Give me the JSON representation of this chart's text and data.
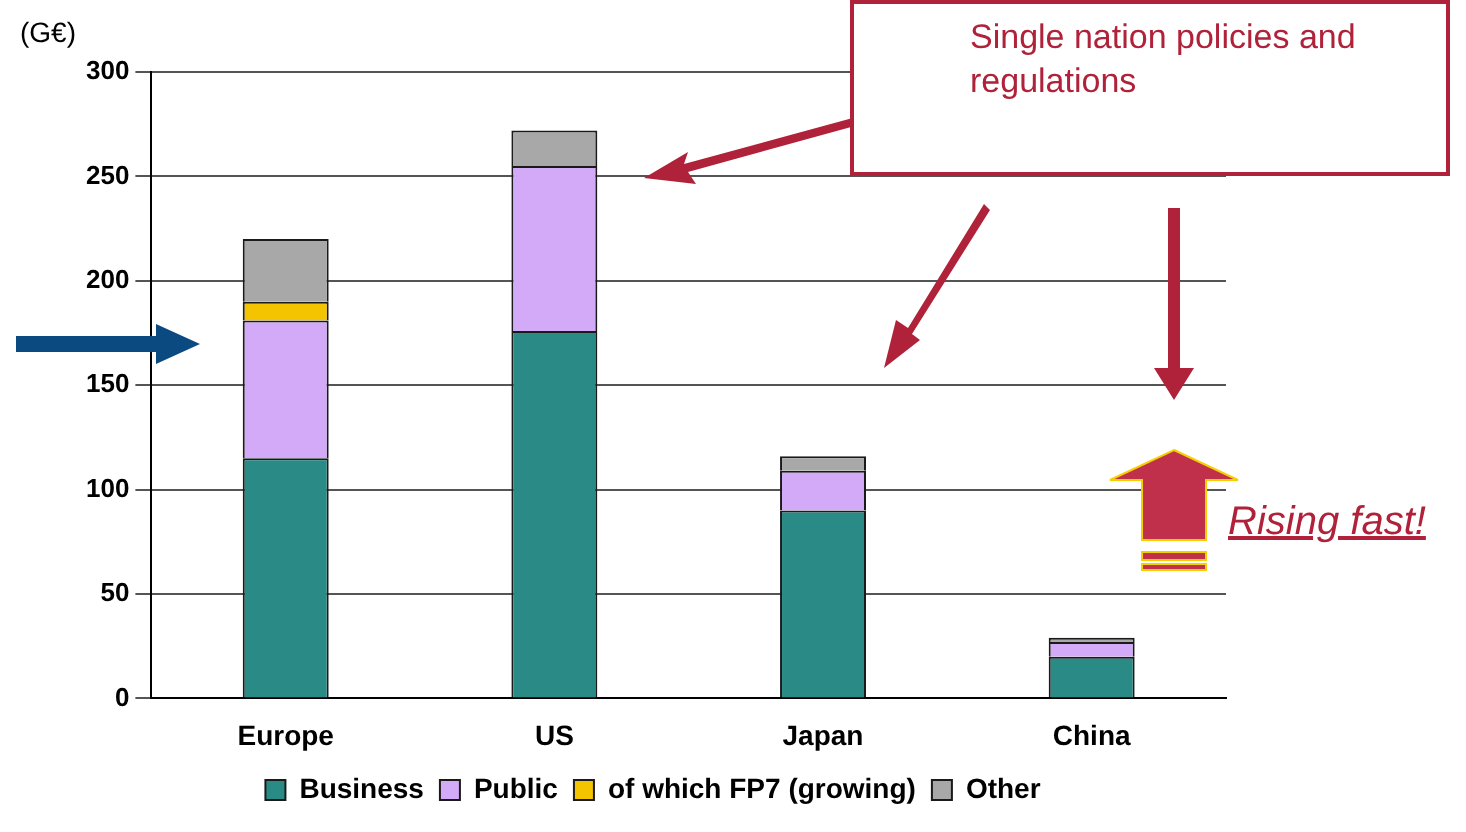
{
  "chart_data": {
    "type": "bar",
    "stacked": true,
    "ylabel": "(G€)",
    "categories": [
      "Europe",
      "US",
      "Japan",
      "China"
    ],
    "series": [
      {
        "name": "Business",
        "color": "#2a8a86",
        "values": [
          115,
          176,
          90,
          20
        ]
      },
      {
        "name": "Public",
        "color": "#d3aaf8",
        "values": [
          66,
          79,
          19,
          7
        ]
      },
      {
        "name": "of which FP7 (growing)",
        "color": "#f5c400",
        "values": [
          9,
          0,
          0,
          0
        ]
      },
      {
        "name": "Other",
        "color": "#a8a8a8",
        "values": [
          30,
          17,
          7,
          2
        ]
      }
    ],
    "ylim": [
      0,
      300
    ],
    "yticks": [
      0,
      50,
      100,
      150,
      200,
      250,
      300
    ],
    "grid": "y",
    "legend": "bottom",
    "annotations": [
      "Single nation policies and regulations",
      "Rising fast!"
    ]
  }
}
